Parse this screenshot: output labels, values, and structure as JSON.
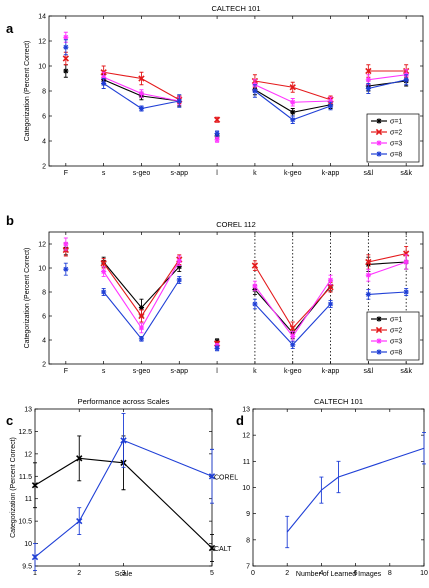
{
  "colors": {
    "s1": "#000000",
    "s2": "#e41a1c",
    "s3": "#ff33ff",
    "s4": "#1f3fd6"
  },
  "chart_data": [
    {
      "id": "a",
      "panel_label": "a",
      "type": "line",
      "title": "CALTECH 101",
      "ylabel": "Categorization (Percent Correct)",
      "xlabel": "",
      "ylim": [
        2,
        14
      ],
      "yticks": [
        2,
        4,
        6,
        8,
        10,
        12,
        14
      ],
      "categories": [
        "F",
        "s",
        "s-geo",
        "s-app",
        "l",
        "k",
        "k-geo",
        "k-app",
        "s&l",
        "s&k"
      ],
      "segments": [
        [
          0
        ],
        [
          1,
          2,
          3
        ],
        [
          4
        ],
        [
          5,
          6,
          7
        ],
        [
          8,
          9
        ]
      ],
      "dotted_at": [],
      "legend": {
        "placement": "bottom-right"
      },
      "series": [
        {
          "name": "σ=1",
          "color": "#000000",
          "marker": "*",
          "values": [
            9.6,
            8.9,
            7.6,
            7.2,
            4.4,
            8.1,
            6.3,
            6.9,
            8.4,
            8.8
          ],
          "err": [
            0.5,
            0.4,
            0.3,
            0.4,
            0.2,
            0.4,
            0.3,
            0.3,
            0.4,
            0.4
          ]
        },
        {
          "name": "σ=2",
          "color": "#e41a1c",
          "marker": "x",
          "values": [
            10.6,
            9.5,
            9.0,
            7.3,
            5.7,
            8.8,
            8.3,
            7.3,
            9.6,
            9.6
          ],
          "err": [
            0.5,
            0.5,
            0.5,
            0.3,
            0.2,
            0.5,
            0.4,
            0.3,
            0.5,
            0.5
          ]
        },
        {
          "name": "σ=3",
          "color": "#ff33ff",
          "marker": "*",
          "values": [
            12.3,
            9.1,
            7.8,
            7.2,
            4.1,
            8.5,
            7.1,
            7.2,
            8.9,
            9.3
          ],
          "err": [
            0.4,
            0.4,
            0.3,
            0.3,
            0.2,
            0.4,
            0.3,
            0.3,
            0.4,
            0.4
          ]
        },
        {
          "name": "σ=8",
          "color": "#1f3fd6",
          "marker": "*",
          "values": [
            11.5,
            8.6,
            6.6,
            7.2,
            4.6,
            8.0,
            5.7,
            6.8,
            8.2,
            8.9
          ],
          "err": [
            0.6,
            0.4,
            0.2,
            0.5,
            0.2,
            0.5,
            0.3,
            0.3,
            0.4,
            0.4
          ]
        }
      ]
    },
    {
      "id": "b",
      "panel_label": "b",
      "type": "line",
      "title": "COREL 112",
      "ylabel": "Categorization (Percent Correct)",
      "xlabel": "",
      "ylim": [
        2,
        13
      ],
      "yticks": [
        2,
        4,
        6,
        8,
        10,
        12
      ],
      "categories": [
        "F",
        "s",
        "s-geo",
        "s-app",
        "l",
        "k",
        "k-geo",
        "k-app",
        "s&l",
        "s&k"
      ],
      "segments": [
        [
          0
        ],
        [
          1,
          2,
          3
        ],
        [
          4
        ],
        [
          5,
          6,
          7
        ],
        [
          8,
          9
        ]
      ],
      "dotted_at": [
        5,
        6,
        7,
        8,
        9
      ],
      "legend": {
        "placement": "bottom-right"
      },
      "series": [
        {
          "name": "σ=1",
          "color": "#000000",
          "marker": "*",
          "values": [
            11.6,
            10.5,
            6.7,
            10.1,
            3.9,
            8.2,
            4.6,
            8.5,
            10.3,
            10.5
          ],
          "err": [
            0.5,
            0.4,
            0.7,
            0.4,
            0.2,
            0.4,
            0.5,
            0.4,
            0.6,
            0.6
          ]
        },
        {
          "name": "σ=2",
          "color": "#e41a1c",
          "marker": "x",
          "values": [
            11.5,
            10.4,
            6.0,
            10.7,
            3.7,
            10.2,
            5.0,
            8.4,
            10.5,
            11.2
          ],
          "err": [
            0.5,
            0.4,
            0.5,
            0.4,
            0.2,
            0.4,
            0.5,
            0.4,
            0.6,
            0.6
          ]
        },
        {
          "name": "σ=3",
          "color": "#ff33ff",
          "marker": "*",
          "values": [
            12.0,
            9.7,
            5.0,
            10.6,
            3.5,
            8.5,
            4.3,
            9.0,
            9.4,
            10.5
          ],
          "err": [
            0.5,
            0.4,
            0.4,
            0.4,
            0.2,
            0.4,
            0.4,
            0.4,
            0.5,
            0.6
          ]
        },
        {
          "name": "σ=8",
          "color": "#1f3fd6",
          "marker": "*",
          "values": [
            9.9,
            8.0,
            4.1,
            9.0,
            3.3,
            7.0,
            3.6,
            7.0,
            7.8,
            8.0
          ],
          "err": [
            0.5,
            0.3,
            0.2,
            0.3,
            0.2,
            0.4,
            0.3,
            0.3,
            0.4,
            0.3
          ]
        }
      ]
    },
    {
      "id": "c",
      "panel_label": "c",
      "type": "line",
      "title": "Performance across Scales",
      "ylabel": "Categorization (Percent Correct)",
      "xlabel": "Scale",
      "xlim": [
        1,
        5
      ],
      "ylim": [
        9.5,
        13
      ],
      "xticks": [
        1,
        2,
        3,
        5
      ],
      "yticks": [
        9.5,
        10,
        10.5,
        11,
        11.5,
        12,
        12.5,
        13
      ],
      "series": [
        {
          "name": "CALT",
          "color": "#000000",
          "marker": "x",
          "x": [
            1,
            2,
            3,
            5
          ],
          "values": [
            11.3,
            11.9,
            11.8,
            9.9
          ],
          "err": [
            0.5,
            0.5,
            0.6,
            0.3
          ]
        },
        {
          "name": "COREL",
          "color": "#1f3fd6",
          "marker": "x",
          "x": [
            1,
            2,
            3,
            5
          ],
          "values": [
            9.7,
            10.5,
            12.3,
            11.5
          ],
          "err": [
            0.3,
            0.3,
            0.6,
            0.6
          ]
        }
      ]
    },
    {
      "id": "d",
      "panel_label": "d",
      "type": "line",
      "title": "CALTECH 101",
      "ylabel": "",
      "xlabel": "Number of Learned Images",
      "xlim": [
        0,
        10
      ],
      "ylim": [
        7,
        13
      ],
      "xticks": [
        0,
        2,
        4,
        6,
        8,
        10
      ],
      "yticks": [
        7,
        8,
        9,
        10,
        11,
        12,
        13
      ],
      "series": [
        {
          "name": "",
          "color": "#1f3fd6",
          "marker": "none",
          "x": [
            2,
            4,
            5,
            10
          ],
          "values": [
            8.3,
            9.9,
            10.4,
            11.5
          ],
          "err": [
            0.6,
            0.5,
            0.6,
            0.6
          ]
        }
      ]
    }
  ]
}
